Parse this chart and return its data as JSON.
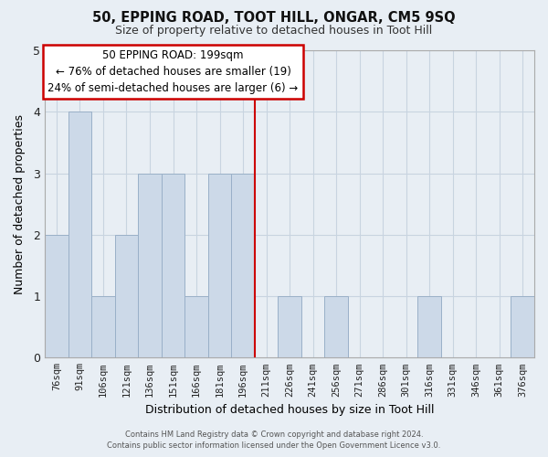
{
  "title": "50, EPPING ROAD, TOOT HILL, ONGAR, CM5 9SQ",
  "subtitle": "Size of property relative to detached houses in Toot Hill",
  "xlabel": "Distribution of detached houses by size in Toot Hill",
  "ylabel": "Number of detached properties",
  "bar_color": "#ccd9e8",
  "bar_edge_color": "#9ab0c8",
  "grid_color": "#c8d4e0",
  "reference_line_color": "#cc0000",
  "categories": [
    "76sqm",
    "91sqm",
    "106sqm",
    "121sqm",
    "136sqm",
    "151sqm",
    "166sqm",
    "181sqm",
    "196sqm",
    "211sqm",
    "226sqm",
    "241sqm",
    "256sqm",
    "271sqm",
    "286sqm",
    "301sqm",
    "316sqm",
    "331sqm",
    "346sqm",
    "361sqm",
    "376sqm"
  ],
  "values": [
    2,
    4,
    1,
    2,
    3,
    3,
    1,
    3,
    3,
    0,
    1,
    0,
    1,
    0,
    0,
    0,
    1,
    0,
    0,
    0,
    1
  ],
  "ylim": [
    0,
    5
  ],
  "yticks": [
    0,
    1,
    2,
    3,
    4,
    5
  ],
  "annotation_title": "50 EPPING ROAD: 199sqm",
  "annotation_line1": "← 76% of detached houses are smaller (19)",
  "annotation_line2": "24% of semi-detached houses are larger (6) →",
  "annotation_box_color": "#ffffff",
  "annotation_box_edge": "#cc0000",
  "footer1": "Contains HM Land Registry data © Crown copyright and database right 2024.",
  "footer2": "Contains public sector information licensed under the Open Government Licence v3.0.",
  "background_color": "#e8eef4",
  "plot_bg_color": "#e8eef4"
}
